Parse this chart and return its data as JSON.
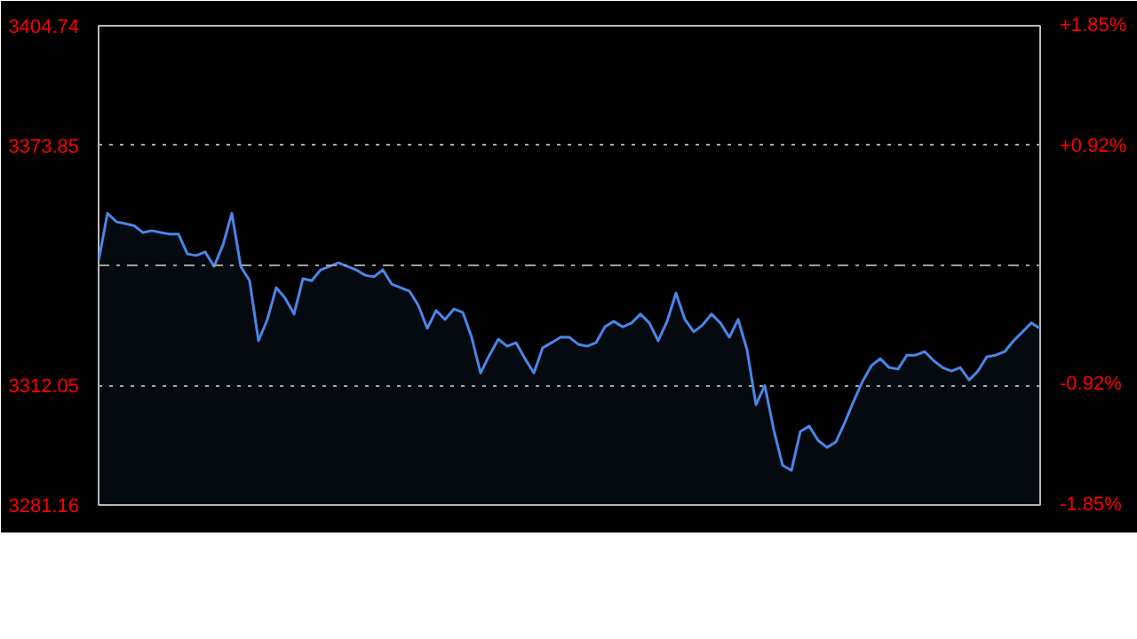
{
  "chart_data": {
    "type": "area",
    "categories": [
      null,
      null,
      null,
      null,
      null,
      null,
      null,
      null,
      null,
      null,
      null,
      null,
      null,
      null,
      null,
      null,
      null,
      null,
      null,
      null,
      null,
      null,
      null,
      null,
      null,
      null,
      null,
      null,
      null,
      null,
      null,
      null,
      null,
      null,
      null,
      null,
      null,
      null,
      null,
      null,
      null,
      null,
      null,
      null,
      null,
      null,
      null,
      null,
      null,
      null,
      null,
      null,
      null,
      null,
      null,
      null,
      null,
      null,
      null,
      null,
      null,
      null,
      null,
      null,
      null,
      null,
      null,
      null,
      null,
      null,
      null,
      null,
      null,
      null,
      null,
      null,
      null,
      null,
      null,
      null,
      null,
      null,
      null,
      null,
      null,
      null,
      null,
      null,
      null,
      null,
      null,
      null,
      null,
      null,
      null,
      null,
      null,
      null,
      null,
      null,
      null,
      null,
      null,
      null,
      null,
      null,
      null
    ],
    "series": [
      {
        "color": "#4a86e8",
        "values": [
          3344.1,
          3356.4,
          3354.2,
          3353.7,
          3353.2,
          3351.4,
          3351.9,
          3351.4,
          3351.0,
          3351.0,
          3345.9,
          3345.5,
          3346.4,
          3342.7,
          3348.2,
          3356.4,
          3342.7,
          3339.0,
          3323.5,
          3329.0,
          3337.2,
          3334.5,
          3330.4,
          3339.5,
          3339.0,
          3341.8,
          3342.7,
          3343.6,
          3342.7,
          3341.8,
          3340.4,
          3340.0,
          3341.8,
          3338.1,
          3337.2,
          3336.3,
          3332.6,
          3326.7,
          3331.3,
          3329.0,
          3331.7,
          3330.8,
          3324.4,
          3315.2,
          3319.8,
          3323.9,
          3322.1,
          3323.0,
          3318.9,
          3315.2,
          3321.7,
          3323.0,
          3324.4,
          3324.4,
          3322.6,
          3322.1,
          3323.0,
          3327.1,
          3328.5,
          3327.1,
          3328.1,
          3330.4,
          3328.1,
          3323.5,
          3328.5,
          3335.8,
          3329.0,
          3325.8,
          3327.6,
          3330.4,
          3328.1,
          3324.4,
          3329.0,
          3321.2,
          3307.0,
          3312.0,
          3300.6,
          3291.4,
          3290.1,
          3300.1,
          3301.5,
          3297.8,
          3296.0,
          3297.4,
          3302.4,
          3307.9,
          3313.0,
          3317.1,
          3318.9,
          3316.6,
          3316.2,
          3319.8,
          3319.8,
          3320.7,
          3318.4,
          3316.6,
          3315.7,
          3316.6,
          3313.4,
          3315.7,
          3319.4,
          3319.8,
          3320.7,
          3323.5,
          3325.8,
          3328.1,
          3326.7
        ]
      }
    ],
    "ylim": [
      3281.16,
      3404.74
    ],
    "yticks": [
      3281.16,
      3312.05,
      3373.85,
      3404.74
    ],
    "y2lim": [
      -1.85,
      1.85
    ],
    "y2ticks": [
      {
        "value": -1.85,
        "label": "-1.85%"
      },
      {
        "value": -0.92,
        "label": "-0.92%"
      },
      {
        "value": 0.92,
        "label": "+0.92%"
      },
      {
        "value": 1.85,
        "label": "+1.85%"
      }
    ],
    "ref_lines": [
      {
        "axis": "y",
        "value": 3342.95,
        "color": "#a0a0a0",
        "line_style": "dashed"
      }
    ],
    "grid": "y",
    "tick_labels": "y"
  }
}
